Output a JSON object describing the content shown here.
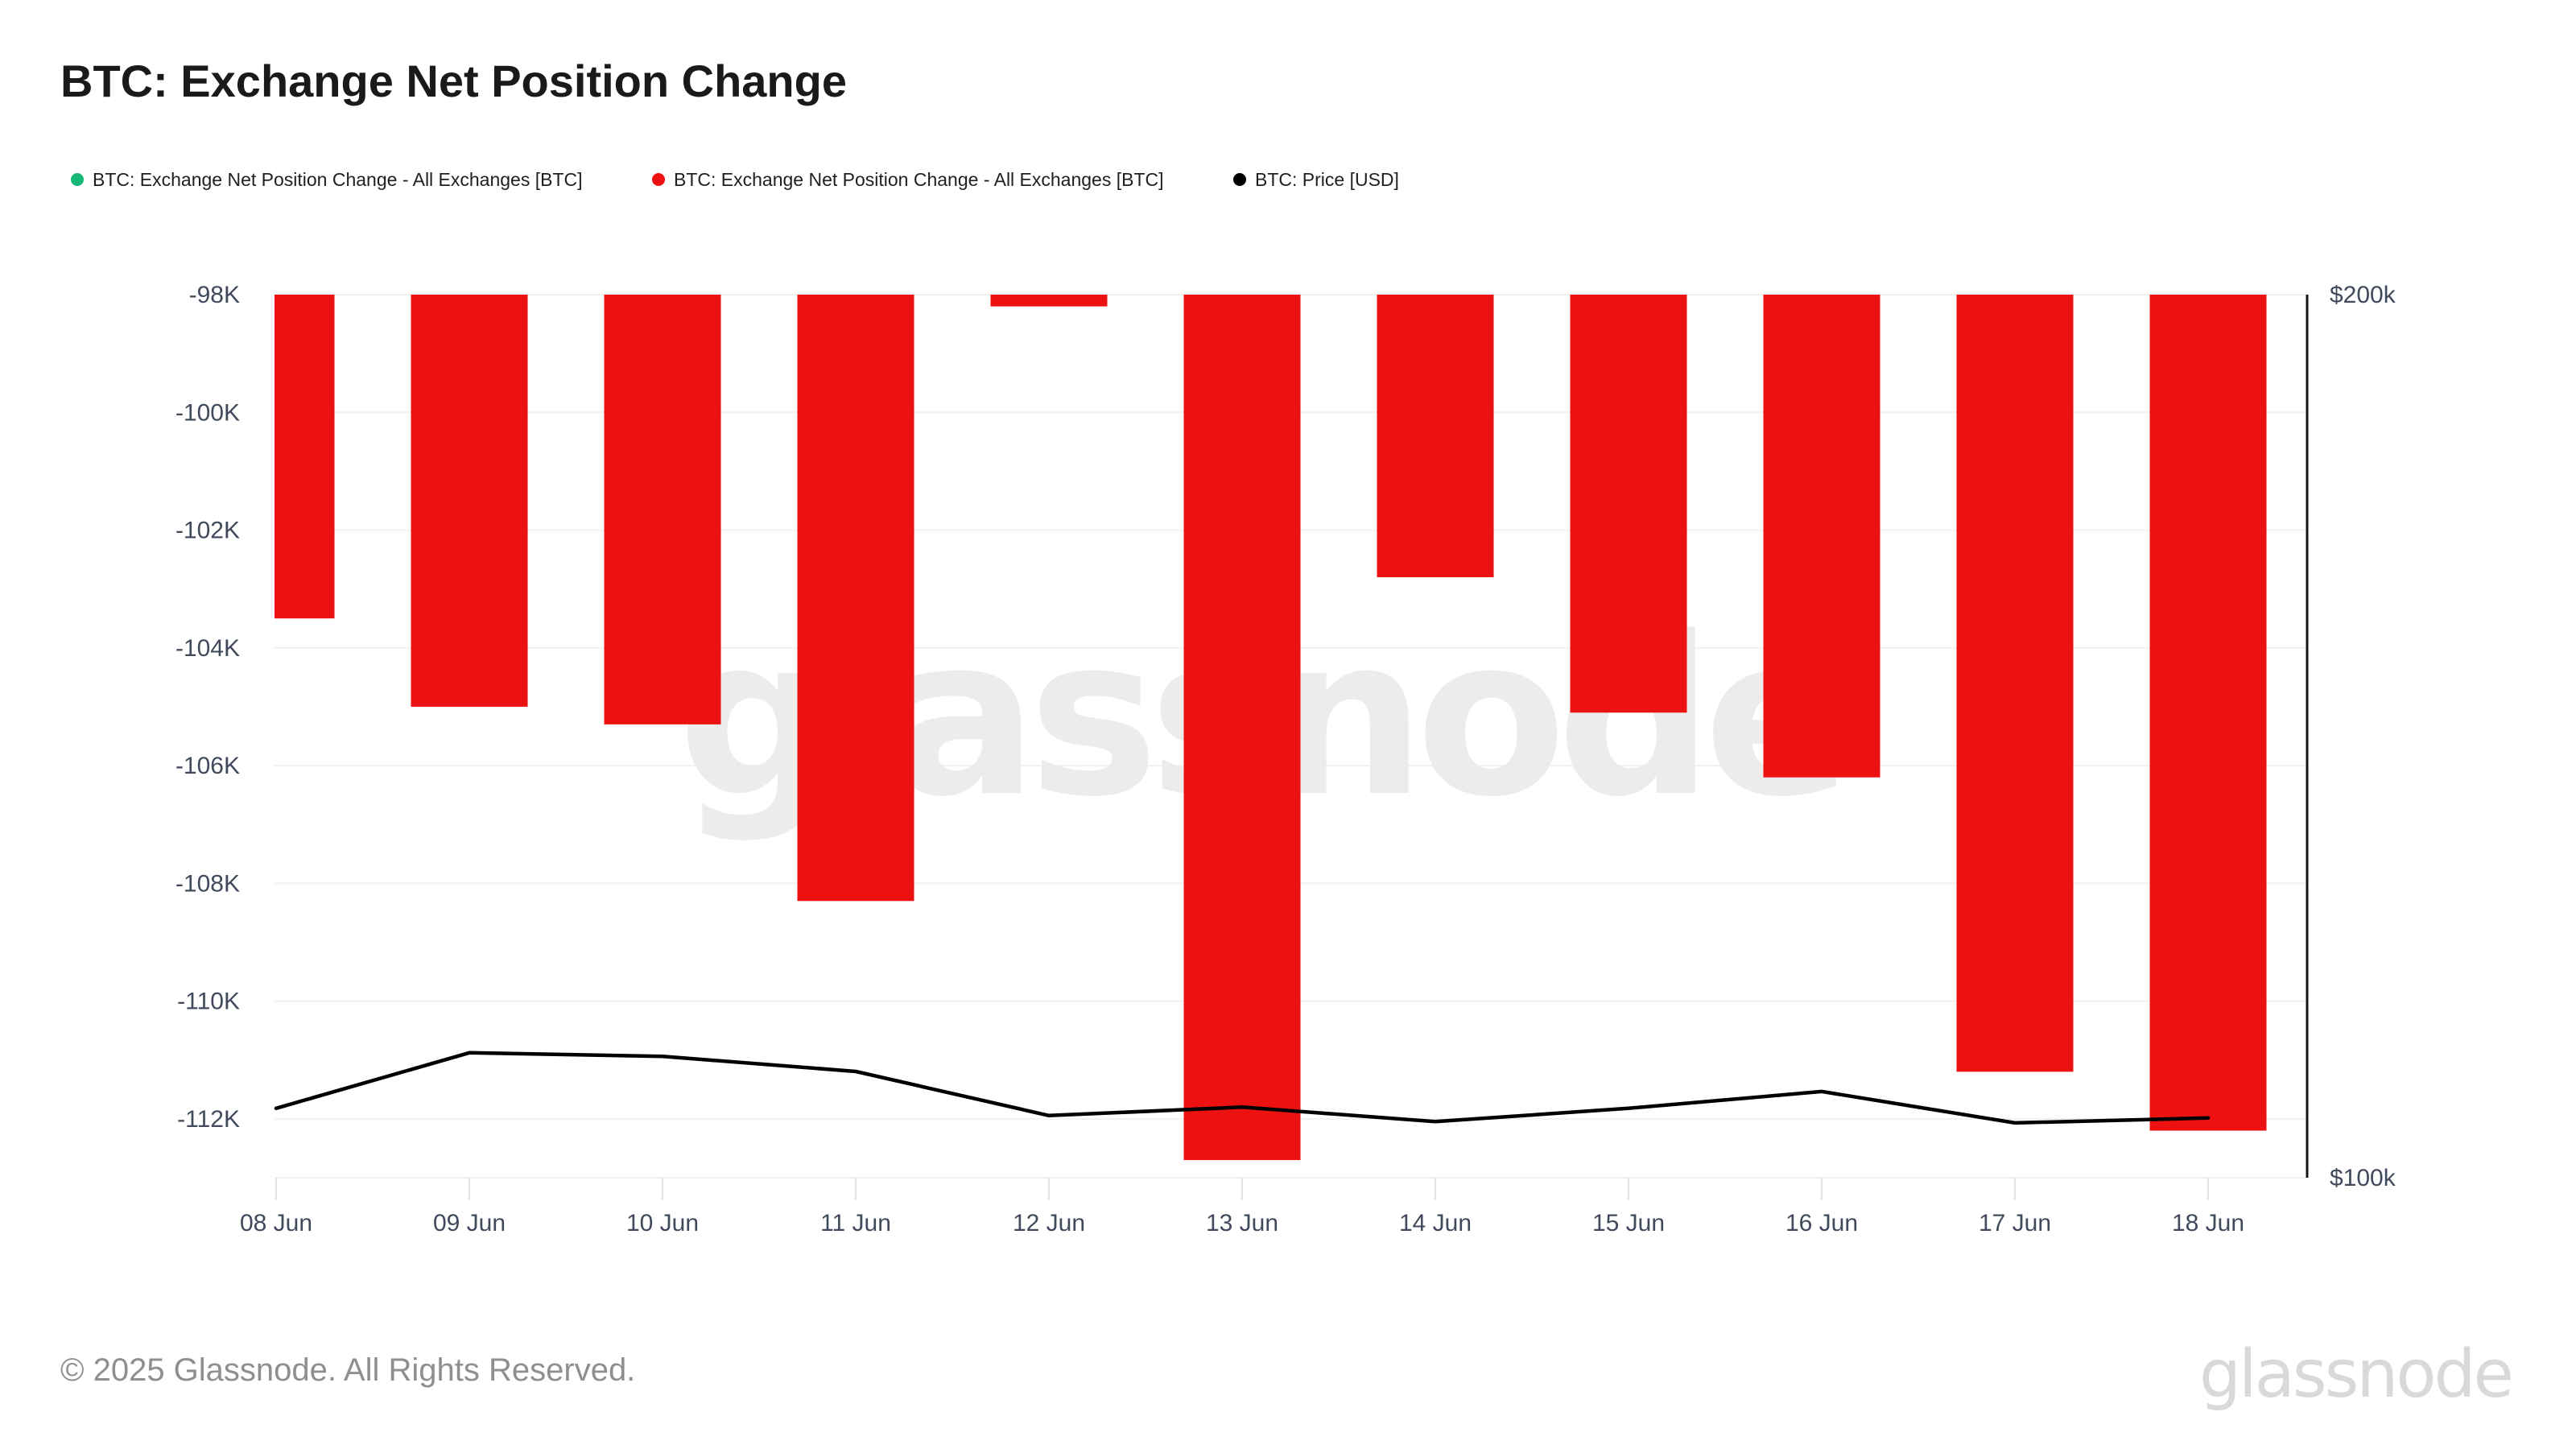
{
  "title": "BTC: Exchange Net Position Change",
  "legend": {
    "items": [
      {
        "label": "BTC: Exchange Net Position Change - All Exchanges [BTC]",
        "color": "#14b877"
      },
      {
        "label": "BTC: Exchange Net Position Change - All Exchanges [BTC]",
        "color": "#ed1111"
      },
      {
        "label": "BTC: Price [USD]",
        "color": "#000000"
      }
    ]
  },
  "watermark": "glassnode",
  "footer": {
    "copyright": "© 2025 Glassnode. All Rights Reserved.",
    "logo": "glassnode"
  },
  "colors": {
    "bar": "#ed1111",
    "price_line": "#000000",
    "legend_green": "#14b877",
    "gridline": "#f1f1f2",
    "tick": "#e3e3e3",
    "axis_label": "#414a5c",
    "right_axis_line": "#141414"
  },
  "chart_data": {
    "type": "bar",
    "title": "BTC: Exchange Net Position Change",
    "categories": [
      "08 Jun",
      "09 Jun",
      "10 Jun",
      "11 Jun",
      "12 Jun",
      "13 Jun",
      "14 Jun",
      "15 Jun",
      "16 Jun",
      "17 Jun",
      "18 Jun"
    ],
    "series": [
      {
        "name": "BTC: Exchange Net Position Change - All Exchanges [BTC]",
        "type": "bar",
        "unit": "BTC",
        "color": "#ed1111",
        "values": [
          -103500,
          -105000,
          -105300,
          -108300,
          -98200,
          -112700,
          -102800,
          -105100,
          -106200,
          -111200,
          -112200
        ]
      },
      {
        "name": "BTC: Price [USD]",
        "type": "line",
        "unit": "USD",
        "color": "#000000",
        "values": [
          105600,
          110300,
          110000,
          108700,
          105000,
          105700,
          104500,
          105600,
          107000,
          104400,
          104800
        ]
      }
    ],
    "left_axis": {
      "ticks": [
        {
          "label": "-98K",
          "value": -98000
        },
        {
          "label": "-100K",
          "value": -100000
        },
        {
          "label": "-102K",
          "value": -102000
        },
        {
          "label": "-104K",
          "value": -104000
        },
        {
          "label": "-106K",
          "value": -106000
        },
        {
          "label": "-108K",
          "value": -108000
        },
        {
          "label": "-110K",
          "value": -110000
        },
        {
          "label": "-112K",
          "value": -112000
        }
      ],
      "max": -98000,
      "min": -113000,
      "note": "bars are clipped at the -98K axis top; first bar clipped at plot left edge"
    },
    "right_axis": {
      "ticks": [
        {
          "label": "$200k",
          "value": 200000
        },
        {
          "label": "$100k",
          "value": 100000
        }
      ],
      "max": 200000,
      "min": 100000,
      "scale": "log"
    },
    "grid": "horizontal",
    "legend_position": "top-left"
  }
}
